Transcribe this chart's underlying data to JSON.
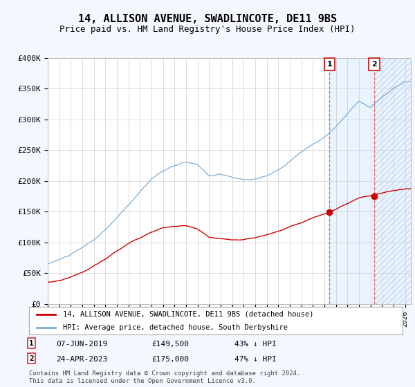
{
  "title": "14, ALLISON AVENUE, SWADLINCOTE, DE11 9BS",
  "subtitle": "Price paid vs. HM Land Registry's House Price Index (HPI)",
  "ylim": [
    0,
    400000
  ],
  "yticks": [
    0,
    50000,
    100000,
    150000,
    200000,
    250000,
    300000,
    350000,
    400000
  ],
  "ytick_labels": [
    "£0",
    "£50K",
    "£100K",
    "£150K",
    "£200K",
    "£250K",
    "£300K",
    "£350K",
    "£400K"
  ],
  "hpi_color": "#7aadd4",
  "price_color": "#cc0000",
  "marker1_year": 2019.45,
  "marker1_price": 149500,
  "marker1_hpi_pct": "43%",
  "marker2_year": 2023.32,
  "marker2_price": 175000,
  "marker2_hpi_pct": "47%",
  "marker1_date": "07-JUN-2019",
  "marker2_date": "24-APR-2023",
  "legend_line1": "14, ALLISON AVENUE, SWADLINCOTE, DE11 9BS (detached house)",
  "legend_line2": "HPI: Average price, detached house, South Derbyshire",
  "footnote": "Contains HM Land Registry data © Crown copyright and database right 2024.\nThis data is licensed under the Open Government Licence v3.0.",
  "background_color": "#f5f7ff",
  "plot_bg_color": "#ffffff",
  "grid_color": "#cccccc",
  "shade_color": "#ddeeff",
  "hatch_color": "#bbccee",
  "title_fontsize": 11,
  "subtitle_fontsize": 9,
  "hpi_waypoints_x": [
    1995,
    1996,
    1997,
    1998,
    1999,
    2000,
    2001,
    2002,
    2003,
    2004,
    2005,
    2006,
    2007,
    2008,
    2009,
    2010,
    2011,
    2012,
    2013,
    2014,
    2015,
    2016,
    2017,
    2018,
    2019,
    2020,
    2021,
    2022,
    2023,
    2024,
    2025,
    2026
  ],
  "hpi_waypoints_y": [
    65000,
    72000,
    80000,
    90000,
    103000,
    118000,
    138000,
    158000,
    180000,
    202000,
    215000,
    222000,
    228000,
    222000,
    205000,
    208000,
    202000,
    198000,
    200000,
    205000,
    215000,
    230000,
    245000,
    258000,
    268000,
    285000,
    305000,
    325000,
    315000,
    330000,
    345000,
    355000
  ],
  "price_waypoints_x": [
    1995,
    1996,
    1997,
    1998,
    1999,
    2000,
    2001,
    2002,
    2003,
    2004,
    2005,
    2006,
    2007,
    2008,
    2009,
    2010,
    2011,
    2012,
    2013,
    2014,
    2015,
    2016,
    2017,
    2018,
    2019.45,
    2020,
    2021,
    2022,
    2023.32,
    2024,
    2025,
    2026
  ],
  "price_waypoints_y": [
    35000,
    38000,
    44000,
    52000,
    62000,
    73000,
    86000,
    98000,
    108000,
    118000,
    125000,
    127000,
    128000,
    122000,
    108000,
    105000,
    103000,
    104000,
    107000,
    112000,
    118000,
    125000,
    132000,
    140000,
    149500,
    154000,
    162000,
    170000,
    175000,
    178000,
    182000,
    185000
  ]
}
